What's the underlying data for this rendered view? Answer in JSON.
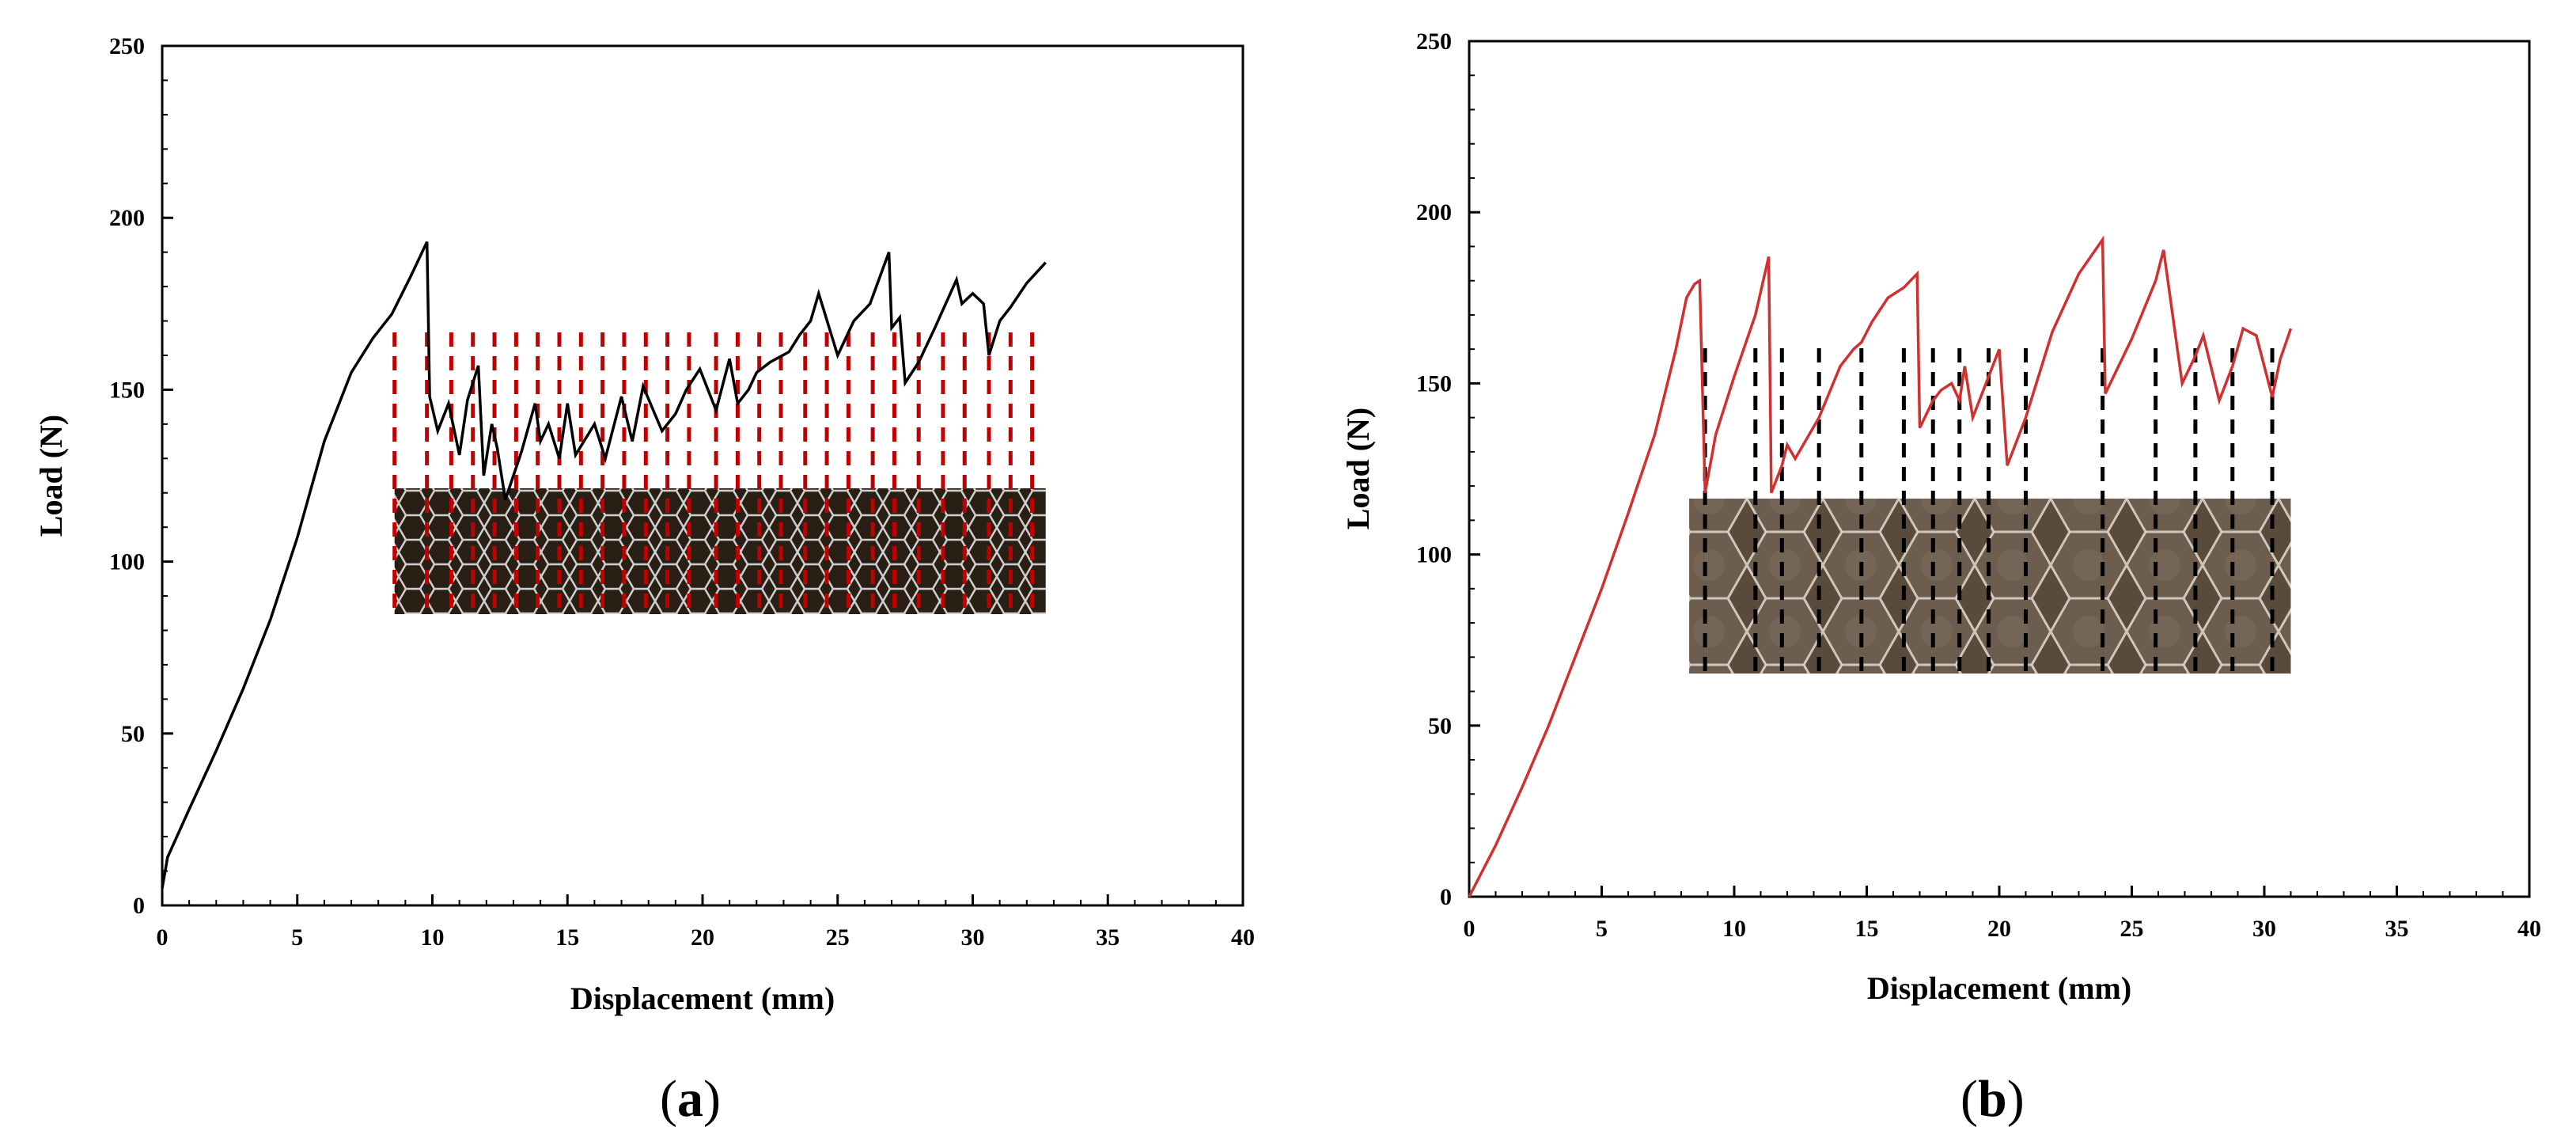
{
  "chart_data": [
    {
      "panel": "a",
      "type": "line",
      "xlabel": "Displacement (mm)",
      "ylabel": "Load (N)",
      "xlim": [
        0,
        40
      ],
      "ylim": [
        0,
        250
      ],
      "xticks": [
        "0",
        "5",
        "10",
        "15",
        "20",
        "25",
        "30",
        "35",
        "40"
      ],
      "yticks": [
        "0",
        "50",
        "100",
        "150",
        "200",
        "250"
      ],
      "grid": false,
      "line_color": "#000000",
      "marker_color": "#c00000",
      "inset": "honeycomb core photograph",
      "x": [
        0,
        0.2,
        1,
        2,
        3,
        4,
        5,
        6,
        7,
        7.8,
        8.5,
        9.2,
        9.8,
        9.9,
        10.2,
        10.6,
        11.0,
        11.3,
        11.7,
        11.9,
        12.2,
        12.4,
        12.7,
        13.3,
        13.8,
        14.0,
        14.3,
        14.7,
        15.0,
        15.3,
        16.0,
        16.4,
        17.0,
        17.4,
        17.8,
        18.5,
        19.0,
        19.4,
        19.9,
        20.5,
        21.0,
        21.3,
        21.7,
        22.0,
        22.5,
        23.2,
        23.6,
        24.0,
        24.3,
        25.0,
        25.6,
        26.2,
        26.9,
        27.0,
        27.3,
        27.5,
        28.0,
        28.6,
        29.4,
        29.6,
        30.0,
        30.4,
        30.6,
        31.0,
        31.4,
        32.0,
        32.7
      ],
      "y": [
        5,
        14,
        28,
        45,
        63,
        83,
        107,
        135,
        155,
        165,
        172,
        183,
        193,
        148,
        138,
        146,
        131,
        147,
        157,
        125,
        140,
        133,
        118,
        132,
        146,
        135,
        140,
        130,
        146,
        131,
        140,
        130,
        148,
        135,
        151,
        138,
        143,
        150,
        156,
        144,
        159,
        146,
        150,
        155,
        158,
        161,
        166,
        170,
        178,
        160,
        170,
        175,
        190,
        168,
        171,
        152,
        158,
        168,
        182,
        175,
        178,
        175,
        160,
        170,
        174,
        181,
        187
      ],
      "crack_markers_x": [
        8.6,
        9.8,
        10.7,
        11.5,
        12.3,
        13.1,
        13.9,
        14.7,
        15.5,
        16.3,
        17.1,
        17.9,
        18.7,
        19.5,
        20.5,
        21.3,
        22.1,
        22.9,
        23.8,
        24.6,
        25.4,
        26.3,
        27.1,
        28.0,
        28.9,
        29.7,
        30.6,
        31.4,
        32.2
      ]
    },
    {
      "panel": "b",
      "type": "line",
      "xlabel": "Displacement (mm)",
      "ylabel": "Load (N)",
      "xlim": [
        0,
        40
      ],
      "ylim": [
        0,
        250
      ],
      "xticks": [
        "0",
        "5",
        "10",
        "15",
        "20",
        "25",
        "30",
        "35",
        "40"
      ],
      "yticks": [
        "0",
        "50",
        "100",
        "150",
        "200",
        "250"
      ],
      "grid": false,
      "line_color": "#d03030",
      "marker_color": "#000000",
      "inset": "honeycomb core photograph",
      "x": [
        0,
        1,
        2,
        3,
        4,
        5,
        6,
        7,
        7.8,
        8.2,
        8.5,
        8.7,
        8.9,
        9.3,
        10.0,
        10.8,
        11.3,
        11.4,
        11.8,
        12.0,
        12.3,
        13.2,
        14.0,
        14.5,
        14.8,
        15.2,
        15.8,
        16.4,
        16.9,
        17.0,
        17.5,
        17.8,
        18.2,
        18.5,
        18.7,
        19.0,
        19.6,
        20.0,
        20.3,
        21.0,
        22.0,
        23.0,
        23.9,
        24.0,
        25.0,
        25.9,
        26.2,
        26.9,
        27.4,
        27.7,
        28.3,
        28.8,
        29.2,
        29.7,
        30.3,
        30.6,
        31.0
      ],
      "y": [
        0,
        15,
        32,
        50,
        70,
        90,
        112,
        135,
        160,
        175,
        179,
        180,
        118,
        135,
        152,
        170,
        187,
        118,
        126,
        132,
        128,
        140,
        155,
        160,
        162,
        168,
        175,
        178,
        182,
        137,
        145,
        148,
        150,
        145,
        155,
        140,
        152,
        160,
        126,
        140,
        165,
        182,
        192,
        147,
        163,
        180,
        189,
        150,
        158,
        164,
        145,
        155,
        166,
        164,
        146,
        157,
        166
      ]
    }
  ],
  "panel_labels": [
    {
      "open": "(",
      "letter": "a",
      "close": ")"
    },
    {
      "open": "(",
      "letter": "b",
      "close": ")"
    }
  ]
}
